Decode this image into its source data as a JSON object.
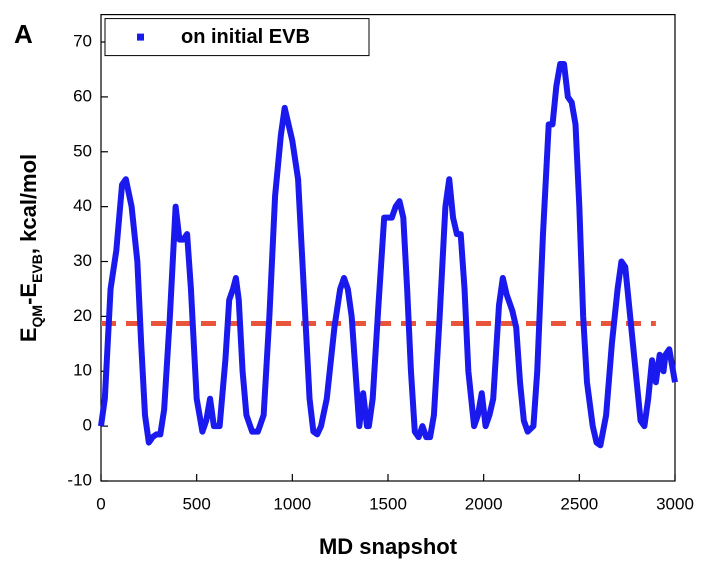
{
  "chart_data": {
    "type": "line",
    "panel_label": "A",
    "xlabel": "MD snapshot",
    "ylabel_parts": [
      {
        "text": "E"
      },
      {
        "text": "QM",
        "sub": true
      },
      {
        "text": "-E"
      },
      {
        "text": "EVB",
        "sub": true
      },
      {
        "text": ", kcal/mol"
      }
    ],
    "xlim": [
      0,
      3000
    ],
    "xticks": [
      0,
      500,
      1000,
      1500,
      2000,
      2500,
      3000
    ],
    "ylim": [
      -10,
      75
    ],
    "yticks": [
      -10,
      0,
      10,
      20,
      30,
      40,
      50,
      60,
      70
    ],
    "legend": "top-left",
    "series": [
      {
        "name": "on initial EVB",
        "color": "#1a1aee",
        "x": [
          0,
          20,
          50,
          80,
          110,
          130,
          160,
          190,
          210,
          230,
          250,
          270,
          290,
          310,
          330,
          360,
          390,
          410,
          430,
          450,
          470,
          500,
          530,
          550,
          570,
          590,
          620,
          650,
          670,
          690,
          705,
          720,
          740,
          760,
          790,
          820,
          850,
          880,
          910,
          940,
          960,
          980,
          1000,
          1030,
          1060,
          1090,
          1110,
          1130,
          1150,
          1180,
          1220,
          1250,
          1270,
          1290,
          1310,
          1330,
          1350,
          1370,
          1390,
          1400,
          1420,
          1450,
          1480,
          1500,
          1520,
          1540,
          1560,
          1580,
          1600,
          1620,
          1640,
          1660,
          1680,
          1700,
          1720,
          1740,
          1770,
          1800,
          1820,
          1840,
          1860,
          1880,
          1900,
          1920,
          1950,
          1970,
          1990,
          2010,
          2030,
          2050,
          2080,
          2100,
          2120,
          2150,
          2170,
          2190,
          2210,
          2230,
          2260,
          2280,
          2310,
          2340,
          2360,
          2380,
          2400,
          2420,
          2440,
          2460,
          2480,
          2500,
          2520,
          2540,
          2570,
          2590,
          2610,
          2640,
          2670,
          2700,
          2720,
          2740,
          2760,
          2780,
          2800,
          2820,
          2840,
          2860,
          2880,
          2900,
          2920,
          2940,
          2950,
          2970,
          2990,
          3000
        ],
        "values": [
          0,
          5,
          25,
          32,
          44,
          45,
          40,
          30,
          15,
          2,
          -3,
          -2,
          -1.5,
          -1.5,
          3,
          20,
          40,
          34,
          34,
          35,
          25,
          5,
          -1,
          1,
          5,
          0,
          0,
          12,
          23,
          25,
          27,
          23,
          10,
          2,
          -1,
          -1,
          2,
          20,
          42,
          53,
          58,
          55,
          52,
          45,
          25,
          5,
          -1,
          -1.5,
          0,
          5,
          18,
          25,
          27,
          25,
          20,
          10,
          0,
          6,
          0,
          0,
          5,
          22,
          38,
          38,
          38,
          40,
          41,
          38,
          25,
          10,
          -1,
          -2,
          0,
          -2,
          -2,
          2,
          20,
          40,
          45,
          38,
          35,
          35,
          25,
          10,
          0,
          2,
          6,
          0,
          2,
          5,
          22,
          27,
          24,
          21,
          18,
          8,
          1,
          -1,
          0,
          10,
          35,
          55,
          55,
          62,
          66,
          66,
          60,
          59,
          55,
          40,
          20,
          8,
          0,
          -3,
          -3.5,
          2,
          15,
          25,
          30,
          29,
          22,
          15,
          8,
          1,
          0,
          5,
          12,
          8,
          13,
          10,
          13,
          14,
          10,
          8
        ]
      }
    ],
    "reference_line": {
      "value": 18.7,
      "x": [
        0,
        2900
      ],
      "color": "#e8553a"
    }
  }
}
